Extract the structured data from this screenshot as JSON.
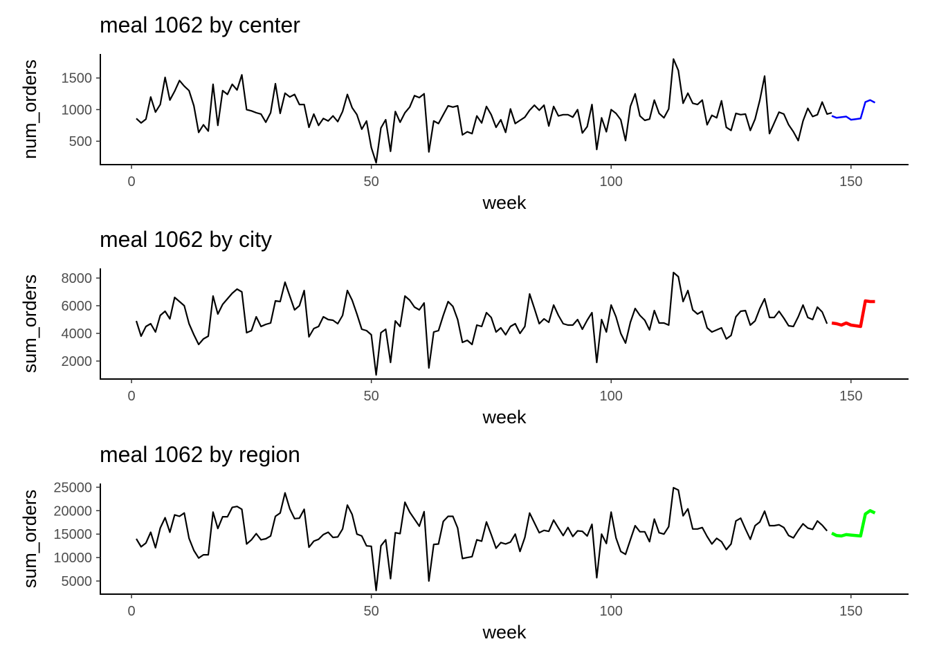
{
  "chart_data": [
    {
      "type": "line",
      "title": "meal 1062 by center",
      "xlabel": "week",
      "ylabel": "num_orders",
      "xlim": [
        -6.5,
        162
      ],
      "ylim": [
        130,
        1880
      ],
      "xticks": [
        0,
        50,
        100,
        150
      ],
      "yticks": [
        500,
        1000,
        1500
      ],
      "x_start": 1,
      "series": [
        {
          "color": "#000000",
          "values": [
            860,
            790,
            850,
            1200,
            960,
            1080,
            1510,
            1150,
            1290,
            1460,
            1370,
            1300,
            1060,
            640,
            760,
            660,
            1400,
            750,
            1300,
            1240,
            1400,
            1310,
            1550,
            1000,
            980,
            950,
            930,
            800,
            950,
            1410,
            940,
            1260,
            1200,
            1240,
            1080,
            1080,
            720,
            930,
            750,
            860,
            820,
            900,
            810,
            970,
            1240,
            1030,
            920,
            690,
            820,
            400,
            160,
            710,
            840,
            340,
            970,
            800,
            950,
            1040,
            1220,
            1190,
            1250,
            330,
            820,
            780,
            920,
            1060,
            1040,
            1060,
            600,
            650,
            620,
            900,
            790,
            1050,
            920,
            720,
            840,
            640,
            1010,
            780,
            830,
            880,
            990,
            1070,
            990,
            1070,
            740,
            1050,
            900,
            920,
            920,
            880,
            1000,
            630,
            730,
            1080,
            370,
            870,
            650,
            1000,
            940,
            840,
            510,
            1050,
            1250,
            900,
            830,
            850,
            1150,
            940,
            870,
            1010,
            1800,
            1620,
            1100,
            1260,
            1100,
            1080,
            1150,
            760,
            910,
            870,
            1140,
            720,
            670,
            940,
            920,
            930,
            670,
            850,
            1150,
            1530,
            620,
            790,
            960,
            930,
            760,
            650,
            510,
            820,
            1020,
            890,
            920,
            1120,
            930,
            950
          ],
          "x_start": 1
        },
        {
          "color": "#0000ff",
          "values": [
            900,
            870,
            880,
            890,
            840,
            850,
            860,
            1120,
            1150,
            1110
          ],
          "x_start": 146
        }
      ]
    },
    {
      "type": "line",
      "title": "meal 1062 by city",
      "xlabel": "week",
      "ylabel": "sum_orders",
      "xlim": [
        -6.5,
        162
      ],
      "ylim": [
        700,
        8700
      ],
      "xticks": [
        0,
        50,
        100,
        150
      ],
      "yticks": [
        2000,
        4000,
        6000,
        8000
      ],
      "series": [
        {
          "color": "#000000",
          "values": [
            4900,
            3800,
            4500,
            4700,
            4100,
            5300,
            5600,
            5050,
            6600,
            6300,
            6000,
            4700,
            3900,
            3200,
            3600,
            3800,
            6700,
            5400,
            6100,
            6500,
            6900,
            7200,
            7000,
            4050,
            4200,
            5200,
            4500,
            4650,
            4750,
            6350,
            6300,
            7700,
            6700,
            5700,
            6000,
            7100,
            3750,
            4350,
            4500,
            5200,
            5000,
            4950,
            4700,
            5300,
            7100,
            6400,
            5400,
            4300,
            4200,
            3900,
            1000,
            4050,
            4300,
            1900,
            4900,
            4500,
            6700,
            6400,
            5900,
            5700,
            6200,
            1500,
            4100,
            4200,
            5300,
            6300,
            5950,
            5000,
            3350,
            3500,
            3200,
            4600,
            4500,
            5500,
            5150,
            4100,
            4400,
            3900,
            4500,
            4700,
            4000,
            4500,
            6850,
            5800,
            4700,
            5050,
            4800,
            6050,
            5300,
            4700,
            4600,
            4600,
            5000,
            4300,
            4950,
            5500,
            1900,
            5000,
            4100,
            6050,
            5200,
            4000,
            3300,
            4800,
            5800,
            5300,
            4950,
            4250,
            5650,
            4750,
            4750,
            4600,
            8400,
            8100,
            6300,
            7100,
            5700,
            5400,
            5600,
            4400,
            4100,
            4250,
            4400,
            3600,
            3850,
            5200,
            5600,
            5650,
            4600,
            4900,
            5800,
            6500,
            5150,
            5150,
            5600,
            5100,
            4550,
            4500,
            5200,
            6050,
            5150,
            5000,
            5900,
            5550,
            4700
          ],
          "x_start": 1
        },
        {
          "color": "#ff0000",
          "values": [
            4750,
            4700,
            4600,
            4750,
            4600,
            4550,
            4500,
            6350,
            6300,
            6300
          ],
          "x_start": 146
        }
      ]
    },
    {
      "type": "line",
      "title": "meal 1062 by region",
      "xlabel": "week",
      "ylabel": "sum_orders",
      "xlim": [
        -6.5,
        162
      ],
      "ylim": [
        2200,
        25800
      ],
      "xticks": [
        0,
        50,
        100,
        150
      ],
      "yticks": [
        5000,
        10000,
        15000,
        20000,
        25000
      ],
      "series": [
        {
          "color": "#000000",
          "values": [
            14000,
            12300,
            13100,
            15400,
            12100,
            16300,
            18500,
            15400,
            19100,
            18800,
            19500,
            14100,
            11500,
            9900,
            10600,
            10600,
            19700,
            16200,
            18700,
            18700,
            20700,
            20900,
            20300,
            12900,
            13800,
            15100,
            13800,
            14000,
            14600,
            18800,
            19500,
            23800,
            20400,
            18300,
            18400,
            20300,
            12200,
            13500,
            13900,
            14900,
            15400,
            14300,
            14400,
            16100,
            21200,
            19200,
            15000,
            14600,
            12500,
            12400,
            3000,
            12500,
            13800,
            5500,
            15300,
            15100,
            21800,
            19700,
            18200,
            16700,
            19800,
            5000,
            12800,
            12900,
            17700,
            18800,
            18800,
            16300,
            9800,
            10000,
            10200,
            13800,
            13500,
            17600,
            14900,
            12000,
            13200,
            12900,
            13300,
            15000,
            11300,
            14300,
            19500,
            17400,
            15300,
            15800,
            15600,
            18000,
            16300,
            14700,
            16400,
            14500,
            15700,
            15600,
            14600,
            17100,
            5700,
            15000,
            13000,
            19700,
            14200,
            11300,
            10700,
            13800,
            16800,
            15500,
            15500,
            13400,
            18200,
            15300,
            15000,
            16600,
            24900,
            24400,
            18900,
            20400,
            16100,
            16100,
            16400,
            14500,
            12900,
            14100,
            13400,
            11700,
            12900,
            17800,
            18400,
            16100,
            13900,
            16800,
            17600,
            19900,
            16800,
            16800,
            17000,
            16400,
            14700,
            14200,
            15800,
            17200,
            16300,
            16000,
            17800,
            16900,
            15700
          ],
          "x_start": 1
        },
        {
          "color": "#00ff00",
          "values": [
            15200,
            14700,
            14600,
            14900,
            14800,
            14700,
            14600,
            19300,
            20000,
            19500
          ],
          "x_start": 146
        }
      ]
    }
  ]
}
